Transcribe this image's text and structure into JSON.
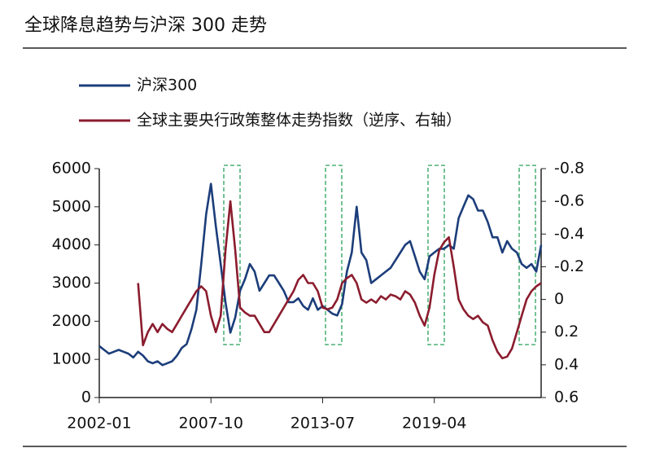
{
  "chart_data": {
    "type": "line",
    "title": "全球降息趋势与沪深 300 走势",
    "x": [
      "2002-01",
      "2002-04",
      "2002-07",
      "2002-10",
      "2003-01",
      "2003-04",
      "2003-07",
      "2003-10",
      "2004-01",
      "2004-04",
      "2004-07",
      "2004-10",
      "2005-01",
      "2005-04",
      "2005-07",
      "2005-10",
      "2006-01",
      "2006-04",
      "2006-07",
      "2006-10",
      "2007-01",
      "2007-04",
      "2007-07",
      "2007-10",
      "2008-01",
      "2008-04",
      "2008-07",
      "2008-10",
      "2009-01",
      "2009-04",
      "2009-07",
      "2009-10",
      "2010-01",
      "2010-04",
      "2010-07",
      "2010-10",
      "2011-01",
      "2011-04",
      "2011-07",
      "2011-10",
      "2012-01",
      "2012-04",
      "2012-07",
      "2012-10",
      "2013-01",
      "2013-04",
      "2013-07",
      "2013-10",
      "2014-01",
      "2014-04",
      "2014-07",
      "2014-10",
      "2015-01",
      "2015-04",
      "2015-07",
      "2015-10",
      "2016-01",
      "2016-04",
      "2016-07",
      "2016-10",
      "2017-01",
      "2017-04",
      "2017-07",
      "2017-10",
      "2018-01",
      "2018-04",
      "2018-07",
      "2018-10",
      "2019-01",
      "2019-04",
      "2019-07",
      "2019-10",
      "2020-01",
      "2020-04",
      "2020-07",
      "2020-10",
      "2021-01",
      "2021-04",
      "2021-07",
      "2021-10",
      "2022-01",
      "2022-04",
      "2022-07",
      "2022-10",
      "2023-01",
      "2023-04",
      "2023-07",
      "2023-10",
      "2024-01",
      "2024-04",
      "2024-07",
      "2024-10"
    ],
    "series": [
      {
        "name": "沪深300",
        "color": "#1c3d7a",
        "values": [
          1350,
          1250,
          1150,
          1200,
          1250,
          1200,
          1150,
          1050,
          1200,
          1100,
          950,
          900,
          950,
          850,
          900,
          950,
          1100,
          1300,
          1400,
          1800,
          2300,
          3500,
          4800,
          5600,
          4500,
          3500,
          2500,
          1700,
          2100,
          2800,
          3100,
          3500,
          3300,
          2800,
          3000,
          3200,
          3200,
          3000,
          2800,
          2500,
          2500,
          2600,
          2400,
          2300,
          2600,
          2300,
          2400,
          2300,
          2200,
          2150,
          2450,
          3300,
          3800,
          5000,
          3800,
          3600,
          3000,
          3100,
          3200,
          3300,
          3400,
          3600,
          3800,
          4000,
          4100,
          3700,
          3300,
          3100,
          3700,
          3800,
          3900,
          3900,
          4000,
          3900,
          4700,
          5000,
          5300,
          5200,
          4900,
          4900,
          4600,
          4200,
          4200,
          3800,
          4100,
          3900,
          3800,
          3500,
          3400,
          3500,
          3300,
          4000
        ]
      },
      {
        "name": "全球主要央行政策整体走势指数（逆序、右轴）",
        "color": "#8b1c2e",
        "axis": "y2",
        "values": [
          null,
          null,
          null,
          null,
          null,
          null,
          null,
          null,
          -0.1,
          0.28,
          0.2,
          0.15,
          0.2,
          0.15,
          0.18,
          0.2,
          0.15,
          0.1,
          0.05,
          0,
          -0.05,
          -0.08,
          -0.05,
          0.1,
          0.2,
          0.1,
          -0.3,
          -0.6,
          -0.3,
          0.05,
          0.08,
          0.1,
          0.1,
          0.15,
          0.2,
          0.2,
          0.15,
          0.1,
          0.05,
          0,
          -0.05,
          -0.12,
          -0.15,
          -0.1,
          -0.1,
          -0.05,
          0.05,
          0.06,
          0.05,
          0,
          -0.1,
          -0.13,
          -0.15,
          -0.1,
          0,
          0.02,
          0,
          0.02,
          -0.02,
          0,
          -0.03,
          -0.02,
          0,
          -0.05,
          -0.03,
          0.02,
          0.1,
          0.16,
          0.05,
          -0.15,
          -0.3,
          -0.35,
          -0.38,
          -0.2,
          0,
          0.06,
          0.1,
          0.12,
          0.1,
          0.14,
          0.16,
          0.25,
          0.32,
          0.36,
          0.35,
          0.3,
          0.2,
          0.1,
          0,
          -0.05,
          -0.08,
          -0.1
        ]
      }
    ],
    "xticks": [
      "2002-01",
      "2007-10",
      "2013-07",
      "2019-04"
    ],
    "xlim": [
      "2002-01",
      "2024-10"
    ],
    "ylim": [
      0,
      6000
    ],
    "yticks": [
      0,
      1000,
      2000,
      3000,
      4000,
      5000,
      6000
    ],
    "y2lim": [
      -0.8,
      0.6
    ],
    "y2_inverted": true,
    "y2ticks": [
      -0.8,
      -0.6,
      -0.4,
      -0.2,
      0,
      0.2,
      0.4,
      0.6
    ]
  }
}
